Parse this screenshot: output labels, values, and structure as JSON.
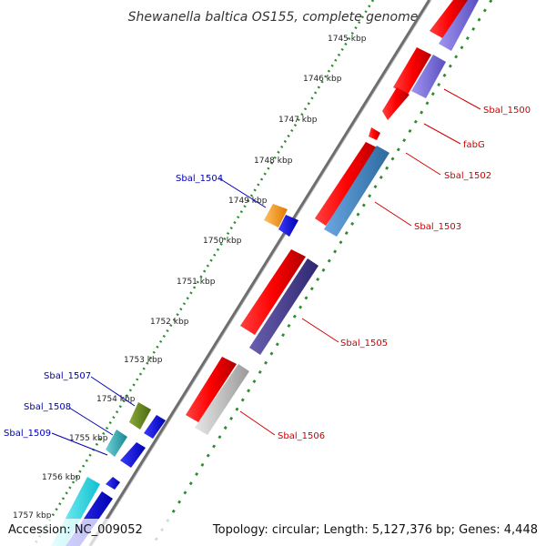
{
  "title": "Shewanella baltica OS155, complete genome",
  "accession": "Accession: NC_009052",
  "summary": "Topology: circular; Length: 5,127,376 bp; Genes: 4,448",
  "ticks": [
    "1745 kbp",
    "1746 kbp",
    "1747 kbp",
    "1748 kbp",
    "1749 kbp",
    "1750 kbp",
    "1751 kbp",
    "1752 kbp",
    "1753 kbp",
    "1754 kbp",
    "1755 kbp",
    "1756 kbp",
    "1757 kbp"
  ],
  "labels_right": [
    "Sbal_1500",
    "fabG",
    "Sbal_1502",
    "Sbal_1503",
    "Sbal_1505",
    "Sbal_1506"
  ],
  "labels_left": [
    "Sbal_1504",
    "Sbal_1507",
    "Sbal_1508",
    "Sbal_1509"
  ],
  "colors": {
    "backbone": "#6e6e6e",
    "tick_dots": "#2e8b2e",
    "label_right": "#d10000",
    "label_left": "#0000b4",
    "gene_red": "#ff0000",
    "gene_lavender": "#7b6fe0",
    "gene_steel": "#4a86c0",
    "gene_indigo": "#4a3f8f",
    "gene_grey": "#c8c8c8",
    "gene_orange": "#ff9a10",
    "gene_blue": "#0a0aff",
    "gene_olive": "#6b8a22",
    "gene_teal": "#22a6b3",
    "gene_cyan": "#27e6ef"
  }
}
